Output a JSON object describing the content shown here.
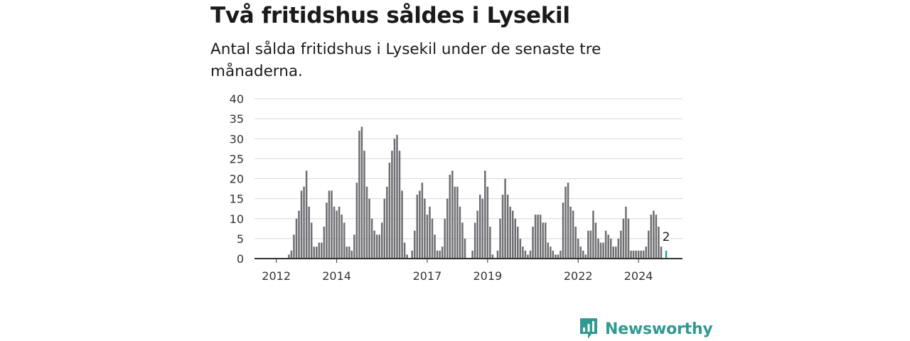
{
  "header": {
    "title": "Två fritidshus såldes i Lysekil",
    "subtitle": "Antal sålda fritidshus i Lysekil under de senaste tre månaderna."
  },
  "brand": {
    "name": "Newsworthy",
    "color": "#2f9a92"
  },
  "colors": {
    "bar": "#6e6e73",
    "highlight": "#2aa198",
    "grid": "#d8d8d8",
    "axis": "#333333"
  },
  "chart_data": {
    "type": "bar",
    "y_ticks": [
      0,
      5,
      10,
      15,
      20,
      25,
      30,
      35,
      40
    ],
    "ylim": [
      0,
      40
    ],
    "x_ticks": [
      {
        "label": "2012",
        "index": 4
      },
      {
        "label": "2014",
        "index": 28
      },
      {
        "label": "2017",
        "index": 64
      },
      {
        "label": "2019",
        "index": 88
      },
      {
        "label": "2022",
        "index": 124
      },
      {
        "label": "2024",
        "index": 148
      }
    ],
    "values": [
      0,
      0,
      0,
      0,
      0,
      0,
      0,
      0,
      0,
      1,
      2,
      6,
      10,
      12,
      17,
      18,
      22,
      13,
      9,
      3,
      3,
      4,
      4,
      8,
      14,
      17,
      17,
      13,
      12,
      13,
      11,
      9,
      3,
      3,
      2,
      6,
      19,
      32,
      33,
      27,
      18,
      15,
      10,
      7,
      6,
      6,
      9,
      15,
      18,
      24,
      27,
      30,
      31,
      27,
      17,
      4,
      1,
      0,
      2,
      7,
      16,
      17,
      19,
      15,
      11,
      13,
      10,
      6,
      2,
      2,
      3,
      10,
      15,
      21,
      22,
      18,
      18,
      13,
      9,
      5,
      0,
      0,
      2,
      9,
      12,
      16,
      15,
      22,
      18,
      8,
      1,
      0,
      2,
      10,
      16,
      20,
      16,
      13,
      12,
      10,
      8,
      5,
      3,
      2,
      1,
      2,
      8,
      11,
      11,
      11,
      9,
      9,
      4,
      3,
      2,
      1,
      1,
      2,
      14,
      18,
      19,
      13,
      12,
      8,
      5,
      3,
      2,
      1,
      7,
      7,
      12,
      9,
      5,
      4,
      4,
      7,
      6,
      5,
      3,
      3,
      5,
      7,
      10,
      13,
      10,
      2,
      2,
      2,
      2,
      2,
      2,
      3,
      7,
      11,
      12,
      11,
      8,
      3,
      0,
      2
    ],
    "highlight_last": true,
    "last_value_label": "2"
  }
}
